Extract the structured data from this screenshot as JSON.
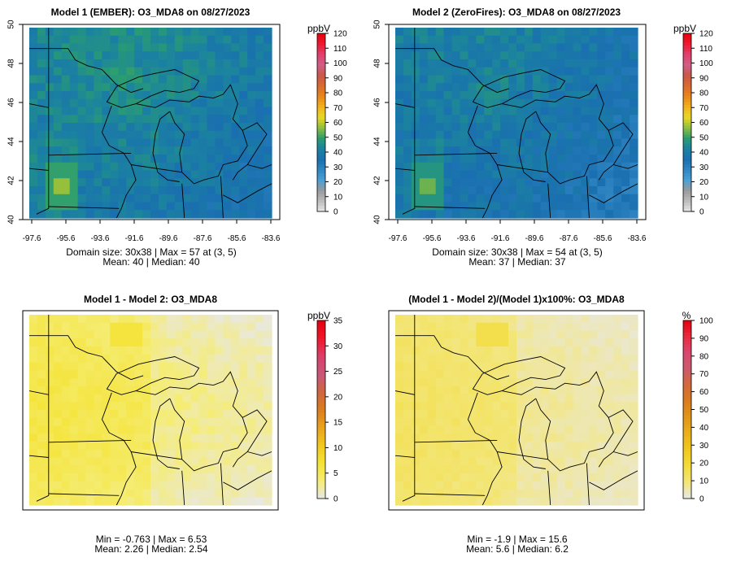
{
  "colors": {
    "ozone_ramp": [
      "#e8e8e8",
      "#bdbdbd",
      "#9a9a9a",
      "#4aa0d8",
      "#2f86c2",
      "#1a6fb0",
      "#1b82a0",
      "#2a9d70",
      "#8fbe3d",
      "#e8d826",
      "#f2b21b",
      "#e8861a",
      "#d96a2e",
      "#c9584a",
      "#d15f85",
      "#e04070",
      "#f01a30",
      "#e6000e"
    ],
    "diff_ramp": [
      "#e8e8e8",
      "#f5ec74",
      "#f5e336",
      "#f2c81e",
      "#eaa21c",
      "#db7c1e",
      "#cf6540",
      "#c9567a",
      "#da3f6a",
      "#f2162a",
      "#e30010"
    ],
    "pct_ramp": [
      "#e8e8e8",
      "#f3e67a",
      "#f3dc3a",
      "#f1c91f",
      "#eab11a",
      "#e2971a",
      "#d97d1c",
      "#d46a3a",
      "#cc5a6a",
      "#d84870",
      "#ea2a40",
      "#e30010"
    ],
    "boundary": "#000000"
  },
  "panels": [
    {
      "title": "Model 1 (EMBER): O3_MDA8 on 08/27/2023",
      "unit": "ppbV",
      "ramp": "ozone_ramp",
      "scale_max": 120,
      "scale_ticks": [
        "0",
        "10",
        "20",
        "30",
        "40",
        "50",
        "60",
        "70",
        "80",
        "90",
        "100",
        "110",
        "120"
      ],
      "lon_ticks": [
        "-97.6",
        "-95.6",
        "-93.6",
        "-91.6",
        "-89.6",
        "-87.6",
        "-85.6",
        "-83.6"
      ],
      "lat_ticks": [
        "40",
        "42",
        "44",
        "46",
        "48",
        "50"
      ],
      "stats_line1": "Domain size: 30x38 | Max = 57 at (3, 5)",
      "stats_line2": "Mean: 40 |  Median: 40",
      "field": {
        "base": 38,
        "max": 57,
        "mean": 40
      }
    },
    {
      "title": "Model 2 (ZeroFires): O3_MDA8 on 08/27/2023",
      "unit": "ppbV",
      "ramp": "ozone_ramp",
      "scale_max": 120,
      "scale_ticks": [
        "0",
        "10",
        "20",
        "30",
        "40",
        "50",
        "60",
        "70",
        "80",
        "90",
        "100",
        "110",
        "120"
      ],
      "lon_ticks": [
        "-97.6",
        "-95.6",
        "-93.6",
        "-91.6",
        "-89.6",
        "-87.6",
        "-85.6",
        "-83.6"
      ],
      "lat_ticks": [
        "40",
        "42",
        "44",
        "46",
        "48",
        "50"
      ],
      "stats_line1": "Domain size: 30x38 | Max = 54 at (3, 5)",
      "stats_line2": "Mean: 37 |  Median: 37",
      "field": {
        "base": 35,
        "max": 54,
        "mean": 37
      }
    },
    {
      "title": "Model 1 - Model 2: O3_MDA8",
      "unit": "ppbV",
      "ramp": "diff_ramp",
      "scale_max": 35,
      "scale_ticks": [
        "0",
        "5",
        "10",
        "15",
        "20",
        "25",
        "30",
        "35"
      ],
      "lon_ticks": [],
      "lat_ticks": [],
      "stats_line1": "Min = -0.763 | Max = 6.53",
      "stats_line2": "Mean: 2.26 |  Median: 2.54",
      "field": {
        "min": -0.763,
        "max": 6.53,
        "mean": 2.26
      }
    },
    {
      "title": "(Model 1 - Model 2)/(Model 1)x100%: O3_MDA8",
      "unit": "%",
      "ramp": "pct_ramp",
      "scale_max": 100,
      "scale_ticks": [
        "0",
        "10",
        "20",
        "30",
        "40",
        "50",
        "60",
        "70",
        "80",
        "90",
        "100"
      ],
      "lon_ticks": [],
      "lat_ticks": [],
      "stats_line1": "Min = -1.9 | Max = 15.6",
      "stats_line2": "Mean: 5.6 |  Median: 6.2",
      "field": {
        "min": -1.9,
        "max": 15.6,
        "mean": 5.6
      }
    }
  ]
}
